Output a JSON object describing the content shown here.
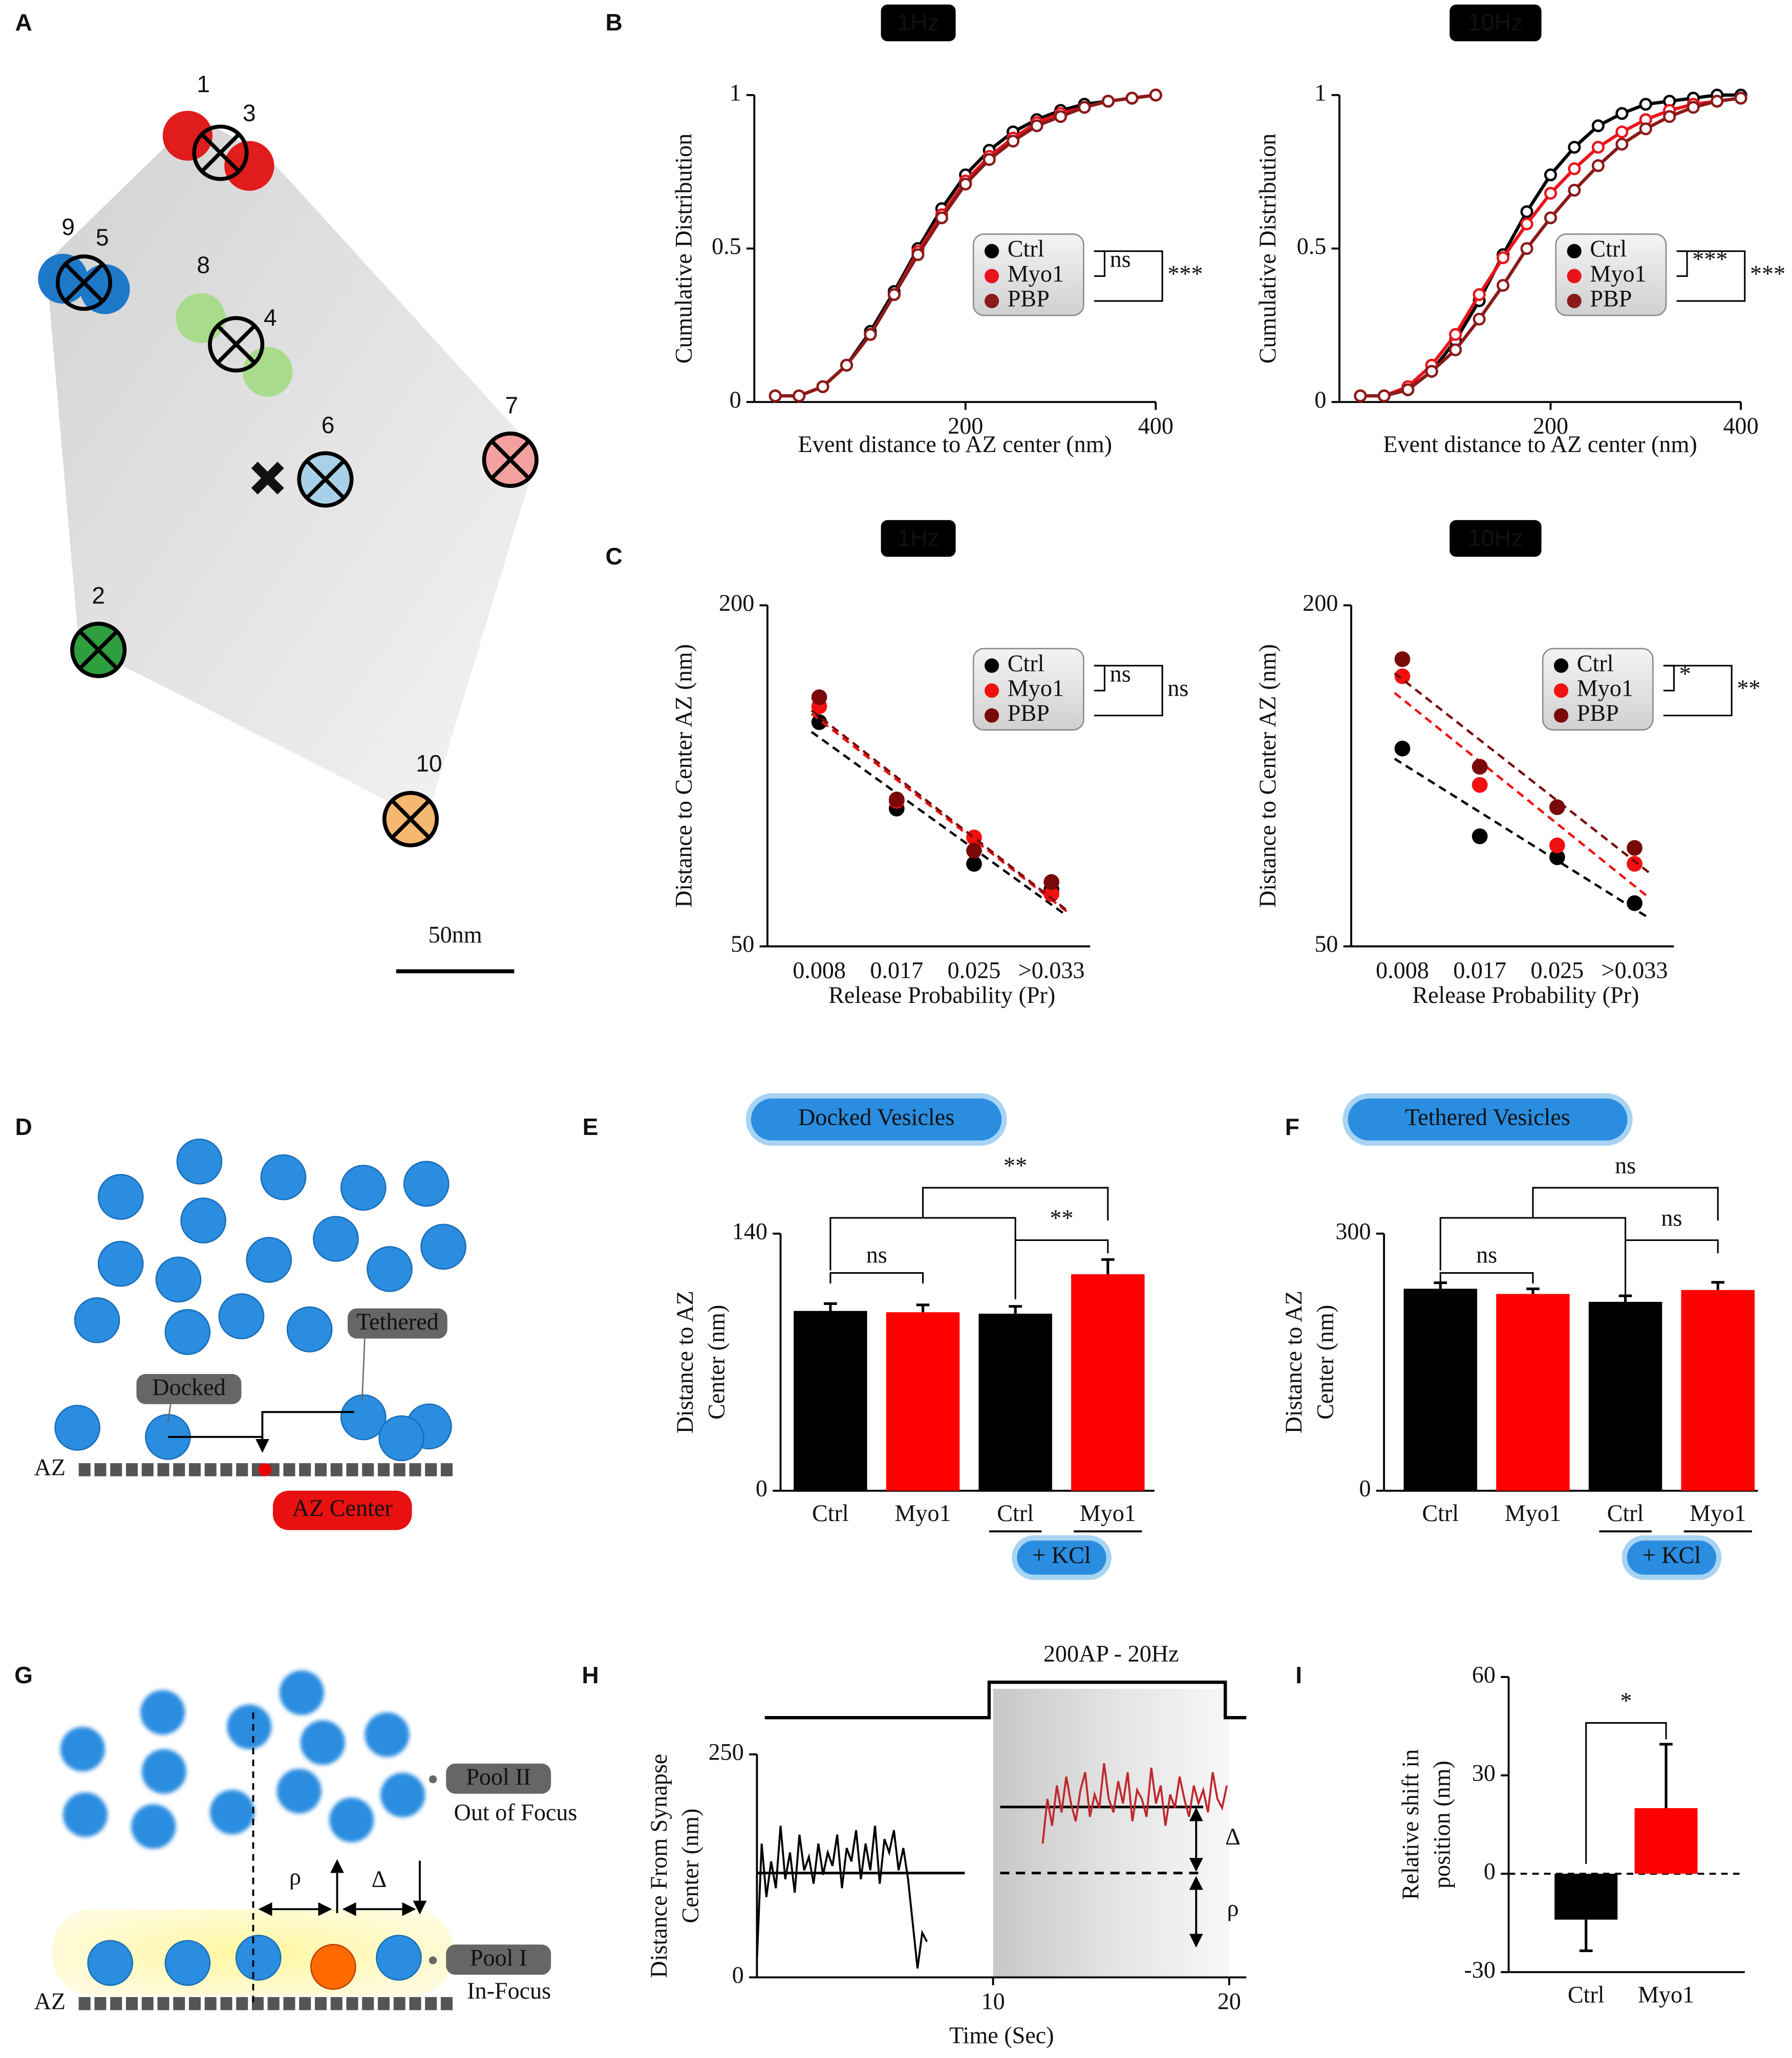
{
  "panel_labels": [
    "A",
    "B",
    "C",
    "D",
    "E",
    "F",
    "G",
    "H",
    "I"
  ],
  "panel_a": {
    "labels": [
      "1",
      "3",
      "9",
      "5",
      "8",
      "4",
      "6",
      "7",
      "2",
      "10"
    ],
    "scale_bar": "50nm"
  },
  "panel_d": {
    "tethered": "Tethered",
    "docked": "Docked",
    "az": "AZ",
    "az_center": "AZ Center"
  },
  "panel_g": {
    "rho": "ρ",
    "delta": "Δ",
    "pool_2": "Pool II",
    "pool_2_note": "Out of Focus",
    "pool_1": "Pool I",
    "pool_1_note": "In-Focus",
    "az": "AZ"
  },
  "chart_data": [
    {
      "type": "line",
      "title": "1Hz",
      "xlabel": "Event distance to AZ center (nm)",
      "ylabel": "Cumulative Distribution",
      "markers": true,
      "legend": "right",
      "x": [
        0,
        25,
        50,
        75,
        100,
        125,
        150,
        175,
        200,
        225,
        250,
        275,
        300,
        325,
        350,
        375,
        400
      ],
      "series": [
        {
          "name": "Ctrl",
          "color": "#000000",
          "values": [
            0.02,
            0.02,
            0.05,
            0.12,
            0.23,
            0.36,
            0.5,
            0.63,
            0.74,
            0.82,
            0.88,
            0.92,
            0.95,
            0.97,
            0.98,
            0.99,
            1.0
          ]
        },
        {
          "name": "Myo1",
          "color": "#e8141b",
          "values": [
            0.02,
            0.02,
            0.05,
            0.12,
            0.22,
            0.35,
            0.49,
            0.61,
            0.72,
            0.8,
            0.86,
            0.91,
            0.94,
            0.96,
            0.98,
            0.99,
            1.0
          ]
        },
        {
          "name": "PBP",
          "color": "#8b1a1a",
          "values": [
            0.02,
            0.02,
            0.05,
            0.12,
            0.22,
            0.35,
            0.48,
            0.6,
            0.71,
            0.79,
            0.85,
            0.9,
            0.93,
            0.96,
            0.98,
            0.99,
            1.0
          ]
        }
      ],
      "xlim": [
        -22,
        400
      ],
      "xticks": [
        200,
        400
      ],
      "ylim": [
        0,
        1
      ],
      "yticks": [
        0,
        0.5,
        1
      ],
      "annotations": [
        "ns",
        "***"
      ]
    },
    {
      "type": "line",
      "title": "10Hz",
      "xlabel": "Event distance to AZ center (nm)",
      "ylabel": "Cumulative Distribution",
      "markers": true,
      "legend": "right",
      "x": [
        0,
        25,
        50,
        75,
        100,
        125,
        150,
        175,
        200,
        225,
        250,
        275,
        300,
        325,
        350,
        375,
        400
      ],
      "series": [
        {
          "name": "Ctrl",
          "color": "#000000",
          "values": [
            0.02,
            0.02,
            0.04,
            0.1,
            0.2,
            0.33,
            0.48,
            0.62,
            0.74,
            0.83,
            0.9,
            0.94,
            0.97,
            0.98,
            0.99,
            1.0,
            1.0
          ]
        },
        {
          "name": "Myo1",
          "color": "#e8141b",
          "values": [
            0.02,
            0.02,
            0.05,
            0.12,
            0.22,
            0.35,
            0.47,
            0.58,
            0.68,
            0.76,
            0.83,
            0.88,
            0.92,
            0.95,
            0.97,
            0.98,
            0.99
          ]
        },
        {
          "name": "PBP",
          "color": "#8b1a1a",
          "values": [
            0.02,
            0.02,
            0.04,
            0.1,
            0.17,
            0.27,
            0.38,
            0.5,
            0.6,
            0.69,
            0.77,
            0.84,
            0.89,
            0.93,
            0.96,
            0.98,
            0.99
          ]
        }
      ],
      "xlim": [
        -22,
        400
      ],
      "xticks": [
        200,
        400
      ],
      "ylim": [
        0,
        1
      ],
      "yticks": [
        0,
        0.5,
        1
      ],
      "annotations": [
        "***",
        "***"
      ]
    },
    {
      "type": "scatter",
      "title": "1Hz",
      "xlabel": "Release Probability (Pr)",
      "ylabel": "Distance to Center AZ (nm)",
      "fit": true,
      "legend": "right",
      "categories": [
        "0.008",
        "0.017",
        "0.025",
        ">0.033"
      ],
      "series": [
        {
          "name": "Ctrl",
          "color": "#000000",
          "values": [
            148.6,
            110.6,
            86.3,
            75
          ]
        },
        {
          "name": "Myo1",
          "color": "#f01010",
          "values": [
            155.6,
            114,
            97.9,
            73
          ]
        },
        {
          "name": "PBP",
          "color": "#7a0a0a",
          "values": [
            159.6,
            114.6,
            92.1,
            78.3
          ]
        }
      ],
      "ylim": [
        50,
        200
      ],
      "yticks": [
        50,
        200
      ],
      "annotations": [
        "ns",
        "ns"
      ]
    },
    {
      "type": "scatter",
      "title": "10Hz",
      "xlabel": "Release Probability (Pr)",
      "ylabel": "Distance to Center AZ (nm)",
      "fit": true,
      "legend": "right",
      "categories": [
        "0.008",
        "0.017",
        "0.025",
        ">0.033"
      ],
      "series": [
        {
          "name": "Ctrl",
          "color": "#000000",
          "values": [
            137,
            98.4,
            89.2,
            69
          ]
        },
        {
          "name": "Myo1",
          "color": "#f01010",
          "values": [
            168.8,
            121,
            94.4,
            86.3
          ]
        },
        {
          "name": "PBP",
          "color": "#7a0a0a",
          "values": [
            176.3,
            129,
            111.2,
            93.3
          ]
        }
      ],
      "ylim": [
        50,
        200
      ],
      "yticks": [
        50,
        200
      ],
      "annotations": [
        "*",
        "**"
      ]
    },
    {
      "type": "bar",
      "title": "Docked Vesicles",
      "ylabel": [
        "Distance to AZ",
        "Center (nm)"
      ],
      "categories": [
        "Ctrl",
        "Myo1",
        "Ctrl",
        "Myo1"
      ],
      "values": [
        97.9,
        97.2,
        96.4,
        117.9
      ],
      "errors": [
        4,
        4,
        4,
        8
      ],
      "colors": [
        "#000000",
        "#ff0000",
        "#000000",
        "#ff0000"
      ],
      "ylim": [
        0,
        140
      ],
      "yticks": [
        0,
        140
      ],
      "annotations": [
        "ns",
        "**",
        "**"
      ],
      "group_label": "+ KCl"
    },
    {
      "type": "bar",
      "title": "Tethered Vesicles",
      "ylabel": [
        "Distance to AZ",
        "Center (nm)"
      ],
      "categories": [
        "Ctrl",
        "Myo1",
        "Ctrl",
        "Myo1"
      ],
      "values": [
        235.7,
        229.6,
        220.4,
        234.2
      ],
      "errors": [
        7,
        6,
        7,
        9
      ],
      "colors": [
        "#000000",
        "#ff0000",
        "#000000",
        "#ff0000"
      ],
      "ylim": [
        0,
        300
      ],
      "yticks": [
        0,
        300
      ],
      "annotations": [
        "ns",
        "ns",
        "ns"
      ],
      "group_label": "+ KCl"
    },
    {
      "type": "line",
      "xlabel": "Time (Sec)",
      "ylabel": [
        "Distance From  Synapse",
        "Center (nm)"
      ],
      "series": [
        {
          "color": "#000000",
          "x": [
            0,
            0.2,
            0.4,
            0.6,
            0.8,
            1,
            1.2,
            1.4,
            1.6,
            1.8,
            2,
            2.2,
            2.4,
            2.6,
            2.8,
            3,
            3.2,
            3.4,
            3.6,
            3.8,
            4,
            4.2,
            4.4,
            4.6,
            4.8,
            5,
            5.2,
            5.4,
            5.6,
            5.8,
            6,
            6.2,
            6.4,
            6.6,
            6.8,
            7,
            7.2
          ],
          "values": [
            20,
            150,
            90,
            130,
            100,
            170,
            110,
            140,
            95,
            160,
            120,
            135,
            105,
            150,
            115,
            140,
            125,
            160,
            100,
            145,
            130,
            165,
            110,
            150,
            120,
            170,
            105,
            155,
            140,
            165,
            120,
            145,
            110,
            60,
            10,
            50,
            40
          ]
        },
        {
          "color": "#c0272d",
          "x": [
            12.1,
            12.3,
            12.5,
            12.7,
            12.9,
            13.1,
            13.3,
            13.5,
            13.7,
            13.9,
            14.1,
            14.3,
            14.5,
            14.7,
            14.9,
            15.1,
            15.3,
            15.5,
            15.7,
            15.9,
            16.1,
            16.3,
            16.5,
            16.7,
            16.9,
            17.1,
            17.3,
            17.5,
            17.7,
            17.9,
            18.1,
            18.3,
            18.5,
            18.7,
            18.9,
            19.1,
            19.3,
            19.5,
            19.7,
            19.9
          ],
          "values": [
            150,
            200,
            170,
            215,
            185,
            225,
            195,
            175,
            210,
            230,
            180,
            205,
            190,
            240,
            200,
            185,
            220,
            195,
            230,
            175,
            210,
            200,
            180,
            235,
            195,
            215,
            170,
            205,
            190,
            225,
            200,
            180,
            215,
            195,
            210,
            185,
            230,
            200,
            190,
            215
          ]
        }
      ],
      "reference_lines": [
        {
          "value": 117,
          "x": [
            0,
            8.8
          ]
        },
        {
          "value": 191,
          "x": [
            10.3,
            18.9
          ]
        },
        {
          "value": 117,
          "x": [
            10.3,
            18.9
          ],
          "dashed": true
        }
      ],
      "xlim": [
        0,
        20
      ],
      "xticks": [
        10,
        20
      ],
      "ylim": [
        0,
        250
      ],
      "yticks": [
        0,
        250
      ],
      "annotations": [
        "200AP - 20Hz",
        "Δ",
        "ρ"
      ]
    },
    {
      "type": "bar",
      "ylabel": [
        "Relative shift in",
        "position (nm)"
      ],
      "categories": [
        "Ctrl",
        "Myo1"
      ],
      "values": [
        -14,
        20
      ],
      "errors": [
        9.5,
        19.5
      ],
      "colors": [
        "#000000",
        "#ff0000"
      ],
      "ylim": [
        -30,
        60
      ],
      "yticks": [
        -30,
        0,
        30,
        60
      ],
      "zero_line": true,
      "annotations": [
        "*"
      ]
    }
  ]
}
